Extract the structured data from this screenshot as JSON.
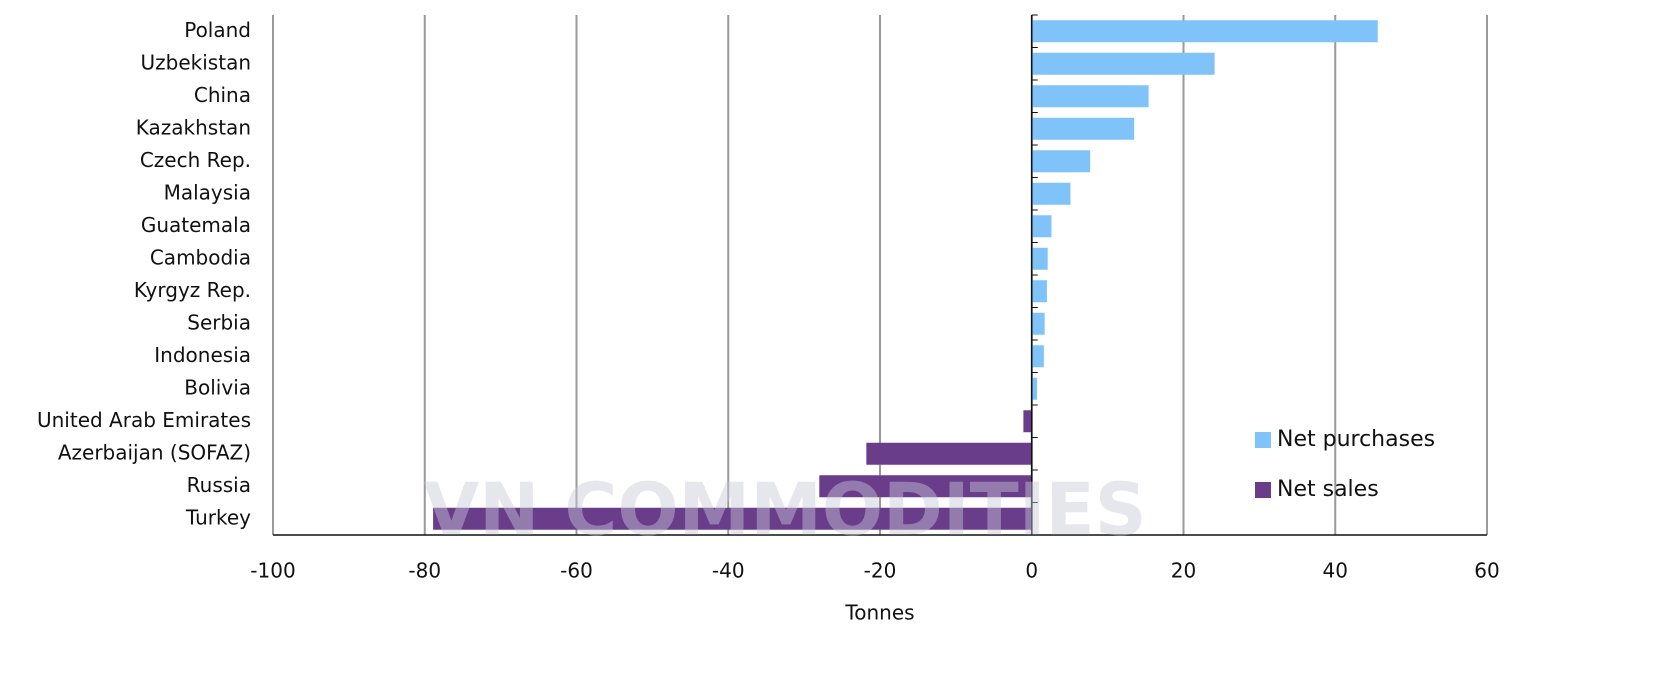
{
  "chart_data": {
    "type": "bar",
    "orientation": "horizontal",
    "x_label": "Tonnes",
    "watermark": "VN COMMODITIES",
    "categories": [
      "Poland",
      "Uzbekistan",
      "China",
      "Kazakhstan",
      "Czech Rep.",
      "Malaysia",
      "Guatemala",
      "Cambodia",
      "Kyrgyz Rep.",
      "Serbia",
      "Indonesia",
      "Bolivia",
      "United Arab Emirates",
      "Azerbaijan (SOFAZ)",
      "Russia",
      "Turkey"
    ],
    "series": [
      {
        "name": "Net purchases",
        "color": "#7fc3f8",
        "values": [
          45.6,
          24.1,
          15.4,
          13.5,
          7.7,
          5.1,
          2.6,
          2.1,
          2.0,
          1.7,
          1.6,
          0.7,
          null,
          null,
          null,
          null
        ]
      },
      {
        "name": "Net sales",
        "color": "#6a3d8a",
        "values": [
          null,
          null,
          null,
          null,
          null,
          null,
          null,
          null,
          null,
          null,
          null,
          null,
          -1.1,
          -21.8,
          -28.0,
          -78.9
        ]
      }
    ],
    "xlim": [
      -100,
      60
    ],
    "xticks": [
      -100,
      -80,
      -60,
      -40,
      -20,
      0,
      20,
      40,
      60
    ],
    "grid": true
  }
}
